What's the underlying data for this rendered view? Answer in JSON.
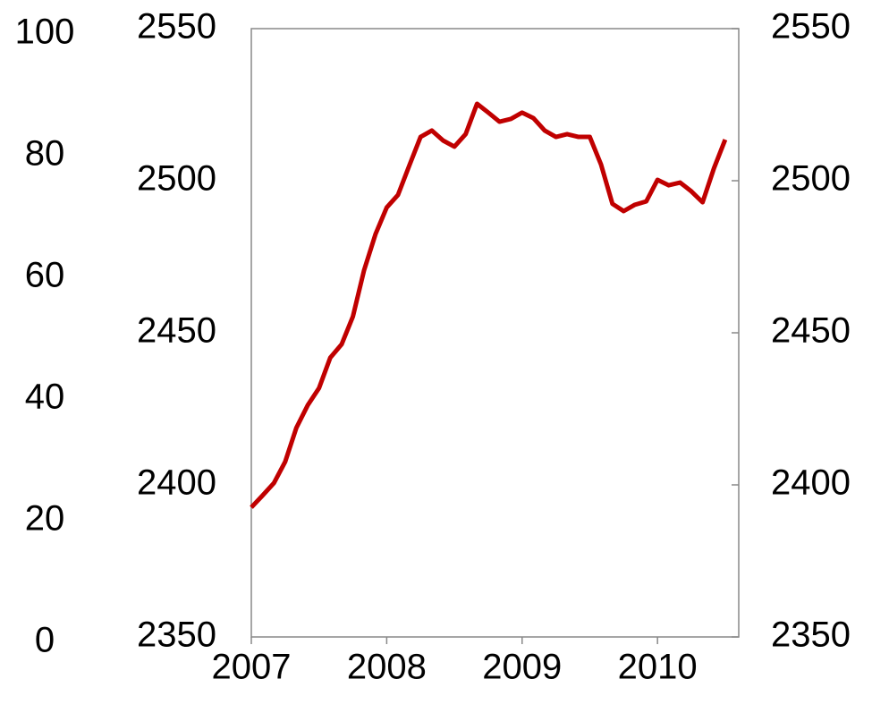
{
  "chart_data": {
    "type": "line",
    "x": [
      2007,
      2007.083,
      2007.167,
      2007.25,
      2007.333,
      2007.417,
      2007.5,
      2007.583,
      2007.667,
      2007.75,
      2007.833,
      2007.917,
      2008,
      2008.083,
      2008.167,
      2008.25,
      2008.333,
      2008.417,
      2008.5,
      2008.583,
      2008.667,
      2008.75,
      2008.833,
      2008.917,
      2009,
      2009.083,
      2009.167,
      2009.25,
      2009.333,
      2009.417,
      2009.5,
      2009.583,
      2009.667,
      2009.75,
      2009.833,
      2009.917,
      2010,
      2010.083,
      2010.167,
      2010.25,
      2010.333,
      2010.417,
      2010.5
    ],
    "series": [
      {
        "color": "#c00000",
        "axis": "y2",
        "values": [
          2392.6,
          2396.5,
          2400.6,
          2407.6,
          2418.8,
          2426.2,
          2431.8,
          2441.8,
          2446.2,
          2455.3,
          2470.6,
          2482.4,
          2491.2,
          2495.3,
          2505.0,
          2514.4,
          2516.5,
          2513.2,
          2511.2,
          2515.3,
          2525.3,
          2522.4,
          2519.4,
          2520.3,
          2522.4,
          2520.6,
          2516.5,
          2514.4,
          2515.3,
          2514.4,
          2514.4,
          2505.3,
          2492.4,
          2490.0,
          2492.1,
          2493.2,
          2500.3,
          2498.5,
          2499.4,
          2496.5,
          2492.9,
          2504.1,
          2513.5
        ]
      }
    ],
    "xlim": [
      2007,
      2010.6
    ],
    "xticks": [
      2007,
      2008,
      2009,
      2010
    ],
    "ylim": [
      0,
      100
    ],
    "yticks": [
      0,
      20,
      40,
      60,
      80,
      100
    ],
    "y2lim": [
      2350,
      2550
    ],
    "y2ticks": [
      2350,
      2400,
      2450,
      2500,
      2550
    ],
    "grid": false
  }
}
